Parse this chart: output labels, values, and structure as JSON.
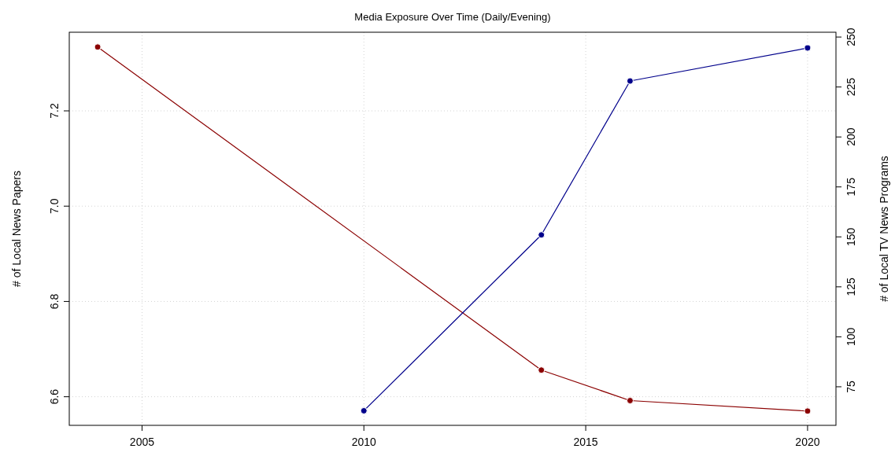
{
  "chart_data": {
    "type": "line",
    "title": "Media Exposure Over Time (Daily/Evening)",
    "ylabel": "# of Local News Papers",
    "y2label": "# of Local TV News Programs",
    "series": [
      {
        "color": "#8b0000",
        "x": [
          2004,
          2014,
          2016,
          2020
        ],
        "values": [
          7.334,
          6.656,
          6.592,
          6.57
        ]
      },
      {
        "color": "#00008b",
        "axis": "y2",
        "x": [
          2010,
          2014,
          2016,
          2020
        ],
        "values": [
          63,
          151,
          228,
          244.5
        ]
      }
    ],
    "xlim": [
      2003.36,
      2020.64
    ],
    "xticks": [
      2005,
      2010,
      2015,
      2020
    ],
    "ylim": [
      6.54,
      7.365
    ],
    "yticks": [
      6.6,
      6.8,
      {
        "value": 7,
        "label": "7.0"
      },
      7.2
    ],
    "y2lim": [
      55.7,
      252.4
    ],
    "y2ticks": [
      75,
      100,
      125,
      150,
      175,
      200,
      225,
      250
    ],
    "grid": true,
    "marker": "circle",
    "line_style": "solid"
  }
}
